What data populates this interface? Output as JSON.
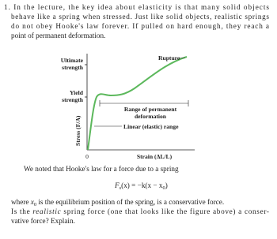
{
  "question": {
    "lines": [
      "1. In the lecture, the key idea about elasticity is that many solid objects",
      "behave like a spring when stressed. Just like solid objects, realistic springs",
      "do not obey Hooke's law forever. If pulled on hard enough, they reach a",
      "point of permanent deformation."
    ]
  },
  "figure": {
    "ultimate": [
      "Ultimate",
      "strength"
    ],
    "yield": [
      "Yield",
      "strength"
    ],
    "rupture": "Rupture",
    "permanent": [
      "Range of permanent",
      "deformation"
    ],
    "linear": "Linear (elastic) range",
    "y_axis": "Stress (F/A)",
    "origin": "0",
    "x_axis": "Strain (ΔL/L)"
  },
  "followup": {
    "intro": "We noted that Hooke's law for a force due to a spring",
    "equation": [
      "F",
      "s",
      "(x) = −k(x − x",
      "0",
      ")"
    ],
    "line1": [
      "where ",
      "x",
      "0",
      " is the equilibrium position of the spring, is a conservative force."
    ],
    "line2": [
      "Is the ",
      "realistic",
      " spring force (one that looks like the figure above) a conser-"
    ],
    "line3": "vative force? Explain."
  }
}
